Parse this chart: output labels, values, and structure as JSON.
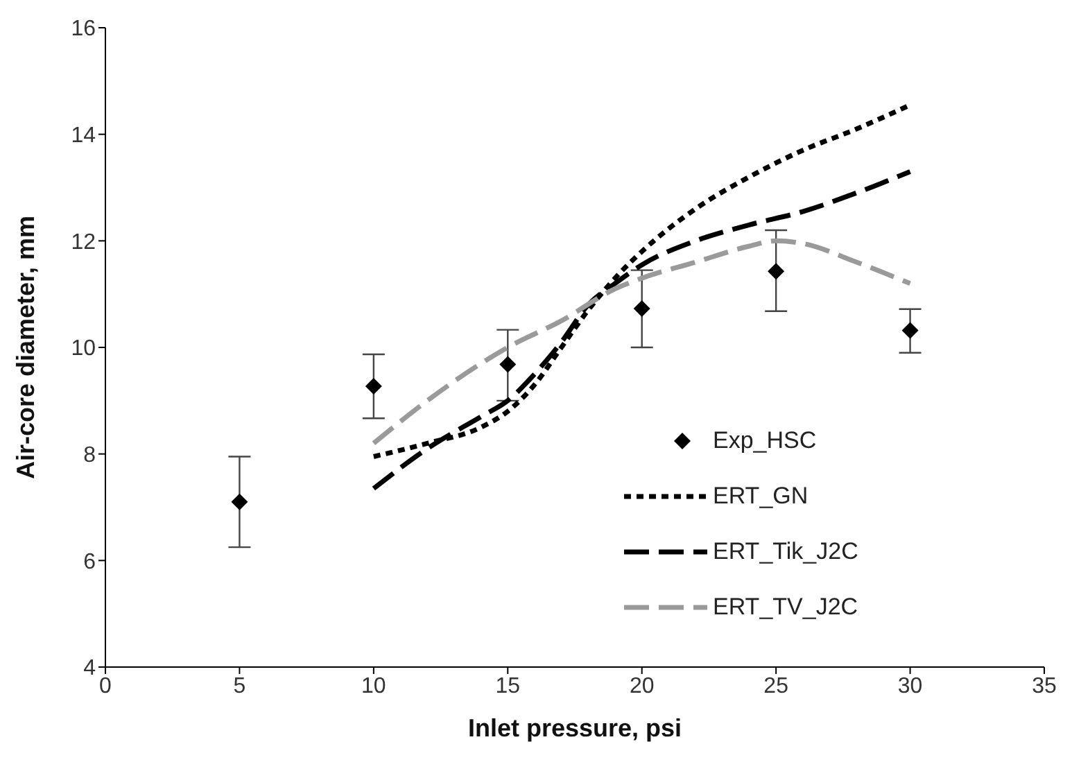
{
  "chart_data": {
    "type": "line",
    "xlabel": "Inlet pressure, psi",
    "ylabel": "Air-core diameter, mm",
    "xlim": [
      0,
      35
    ],
    "xticks": [
      0,
      5,
      10,
      15,
      20,
      25,
      30,
      35
    ],
    "ylim": [
      4,
      16
    ],
    "yticks": [
      4,
      6,
      8,
      10,
      12,
      14,
      16
    ],
    "grid": false,
    "legend": "right",
    "series": [
      {
        "name": "Exp_HSC",
        "type": "scatter",
        "marker": "diamond",
        "color": "#000000",
        "x": [
          5,
          10,
          15,
          20,
          25,
          30
        ],
        "values": [
          7.1,
          9.27,
          9.68,
          10.73,
          11.43,
          10.32
        ],
        "errors": [
          [
            6.25,
            7.95
          ],
          [
            8.67,
            9.87
          ],
          [
            9.0,
            10.33
          ],
          [
            10.0,
            11.45
          ],
          [
            10.68,
            12.2
          ],
          [
            9.9,
            10.72
          ]
        ]
      },
      {
        "name": "ERT_GN",
        "type": "line",
        "line_style": "dotted",
        "marker": "none",
        "color": "#000000",
        "x": [
          10,
          12,
          14,
          15,
          16,
          17,
          18,
          19,
          20,
          22,
          24,
          26,
          28,
          30
        ],
        "values": [
          7.95,
          8.2,
          8.5,
          8.8,
          9.3,
          10.0,
          10.7,
          11.3,
          11.8,
          12.6,
          13.2,
          13.7,
          14.1,
          14.55
        ]
      },
      {
        "name": "ERT_Tik_J2C",
        "type": "line",
        "line_style": "dashed",
        "marker": "none",
        "color": "#000000",
        "x": [
          10,
          12,
          14,
          15,
          16,
          17,
          18,
          19,
          20,
          22,
          24,
          26,
          28,
          30
        ],
        "values": [
          7.35,
          8.1,
          8.7,
          9.0,
          9.5,
          10.1,
          10.8,
          11.2,
          11.55,
          12.0,
          12.3,
          12.55,
          12.9,
          13.3
        ]
      },
      {
        "name": "ERT_TV_J2C",
        "type": "line",
        "line_style": "dashed",
        "marker": "none",
        "color": "#9a9a9a",
        "x": [
          10,
          12,
          15,
          17,
          19,
          20,
          22,
          24,
          25,
          26,
          28,
          30
        ],
        "values": [
          8.2,
          9.0,
          10.0,
          10.5,
          11.1,
          11.3,
          11.6,
          11.9,
          12.0,
          11.95,
          11.6,
          11.2
        ]
      }
    ]
  }
}
